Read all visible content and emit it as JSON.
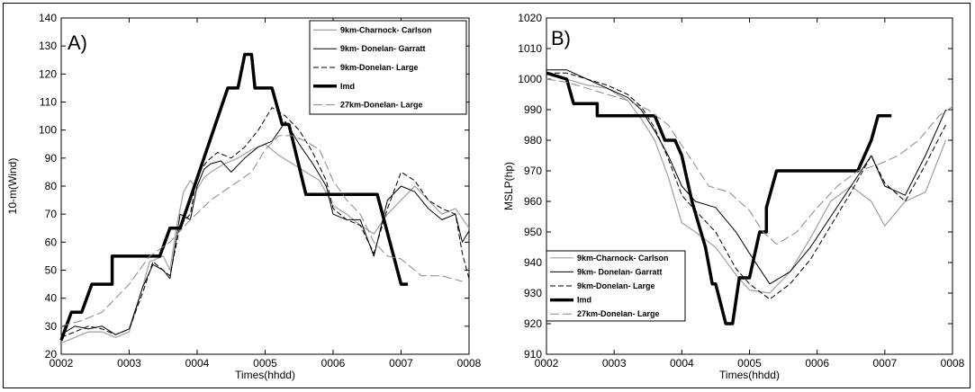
{
  "chart_data": [
    {
      "type": "line",
      "panel_label": "A)",
      "xlabel": "Times(hhdd)",
      "ylabel": "10-m(Wind)",
      "x_ticks": [
        "0002",
        "0003",
        "0004",
        "0005",
        "0006",
        "0007",
        "0008"
      ],
      "xlim": [
        0,
        6
      ],
      "ylim": [
        20,
        140
      ],
      "y_ticks": [
        20,
        30,
        40,
        50,
        60,
        70,
        80,
        90,
        100,
        110,
        120,
        130,
        140
      ],
      "legend_position": "top-right",
      "series": [
        {
          "name": "9km-Charnock- Carlson",
          "color": "#a0a0a0",
          "style": "solid",
          "width": 1.2,
          "x": [
            0,
            0.2,
            0.4,
            0.6,
            0.8,
            1.0,
            1.15,
            1.3,
            1.5,
            1.6,
            1.7,
            1.8,
            1.9,
            2.0,
            2.1,
            2.2,
            2.4,
            2.6,
            2.8,
            3.0,
            3.2,
            3.4,
            3.6,
            3.8,
            4.0,
            4.2,
            4.4,
            4.6,
            4.8,
            5.0,
            5.2,
            5.4,
            5.6,
            5.8,
            6.0
          ],
          "y": [
            24,
            26,
            28,
            28,
            26,
            28,
            40,
            53,
            55,
            50,
            66,
            78,
            82,
            79,
            83,
            85,
            88,
            90,
            93,
            95,
            91,
            88,
            85,
            82,
            73,
            70,
            66,
            63,
            70,
            75,
            80,
            75,
            70,
            72,
            65
          ]
        },
        {
          "name": "9km- Donelan- Garratt",
          "color": "#000000",
          "style": "solid",
          "width": 1.0,
          "x": [
            0,
            0.2,
            0.4,
            0.6,
            0.8,
            1.0,
            1.2,
            1.35,
            1.5,
            1.6,
            1.75,
            1.9,
            2.0,
            2.1,
            2.2,
            2.35,
            2.5,
            2.7,
            2.9,
            3.1,
            3.3,
            3.5,
            3.7,
            3.9,
            4.0,
            4.2,
            4.4,
            4.6,
            4.8,
            5.0,
            5.2,
            5.4,
            5.6,
            5.8,
            5.9,
            6.0
          ],
          "y": [
            27,
            30,
            29,
            30,
            27,
            29,
            44,
            52,
            50,
            47,
            70,
            68,
            80,
            86,
            88,
            89,
            85,
            90,
            94,
            96,
            103,
            95,
            88,
            80,
            70,
            68,
            68,
            55,
            75,
            80,
            78,
            72,
            68,
            70,
            60,
            64
          ]
        },
        {
          "name": "9km-Donelan- Large",
          "color": "#000000",
          "style": "dash",
          "width": 1.0,
          "x": [
            0,
            0.2,
            0.4,
            0.6,
            0.8,
            1.0,
            1.2,
            1.35,
            1.5,
            1.6,
            1.75,
            1.9,
            2.0,
            2.15,
            2.3,
            2.5,
            2.7,
            2.9,
            3.1,
            3.3,
            3.5,
            3.7,
            3.9,
            4.0,
            4.2,
            4.4,
            4.6,
            4.8,
            5.0,
            5.2,
            5.4,
            5.6,
            5.8,
            5.9,
            6.0
          ],
          "y": [
            26,
            28,
            30,
            29,
            27,
            29,
            42,
            53,
            50,
            48,
            66,
            70,
            84,
            89,
            92,
            90,
            94,
            100,
            108,
            105,
            100,
            92,
            82,
            72,
            68,
            66,
            56,
            72,
            85,
            82,
            75,
            72,
            70,
            56,
            47
          ]
        },
        {
          "name": "Imd",
          "color": "#000000",
          "style": "solid",
          "width": 3.5,
          "x": [
            0,
            0.15,
            0.3,
            0.3,
            0.45,
            0.45,
            0.75,
            0.75,
            1.25,
            1.25,
            1.45,
            1.6,
            1.6,
            1.75,
            1.75,
            2.45,
            2.45,
            2.6,
            2.6,
            2.7,
            2.75,
            2.8,
            2.85,
            3.1,
            3.1,
            3.25,
            3.25,
            3.35,
            3.35,
            3.6,
            3.6,
            4.65,
            4.65,
            5.0,
            5.1
          ],
          "y": [
            25,
            35,
            35,
            35,
            45,
            45,
            45,
            55,
            55,
            55,
            55,
            65,
            65,
            65,
            65,
            115,
            115,
            115,
            115,
            127,
            127,
            127,
            115,
            115,
            115,
            102,
            102,
            102,
            102,
            77,
            77,
            77,
            77,
            45,
            45
          ]
        },
        {
          "name": "27km-Donelan- Large",
          "color": "#888888",
          "style": "longdash",
          "width": 1.0,
          "x": [
            0,
            0.3,
            0.6,
            0.8,
            1.0,
            1.3,
            1.6,
            1.9,
            2.2,
            2.5,
            2.8,
            3.0,
            3.2,
            3.4,
            3.6,
            3.8,
            4.0,
            4.2,
            4.4,
            4.6,
            4.8,
            5.0,
            5.3,
            5.6,
            5.9
          ],
          "y": [
            30,
            32,
            35,
            40,
            45,
            55,
            60,
            68,
            75,
            80,
            85,
            93,
            98,
            98,
            96,
            93,
            82,
            75,
            70,
            60,
            55,
            54,
            48,
            48,
            46
          ]
        }
      ]
    },
    {
      "type": "line",
      "panel_label": "B)",
      "xlabel": "Times(hhdd)",
      "ylabel": "MSLP(hp)",
      "x_ticks": [
        "0002",
        "0003",
        "0004",
        "0005",
        "0006",
        "0007",
        "0008"
      ],
      "xlim": [
        0,
        6
      ],
      "ylim": [
        910,
        1020
      ],
      "y_ticks": [
        910,
        920,
        930,
        940,
        950,
        960,
        970,
        980,
        990,
        1000,
        1010,
        1020
      ],
      "legend_position": "bottom-left",
      "series": [
        {
          "name": "9km-Charnock- Carlson",
          "color": "#a0a0a0",
          "style": "solid",
          "width": 1.2,
          "x": [
            0,
            0.3,
            0.6,
            0.9,
            1.2,
            1.4,
            1.6,
            1.8,
            2.0,
            2.2,
            2.5,
            2.8,
            3.0,
            3.3,
            3.6,
            3.9,
            4.2,
            4.5,
            4.8,
            5.0,
            5.3,
            5.6,
            5.9
          ],
          "y": [
            1002,
            1000,
            998,
            997,
            993,
            987,
            980,
            968,
            953,
            950,
            945,
            936,
            931,
            930,
            937,
            948,
            960,
            965,
            960,
            952,
            960,
            963,
            980
          ]
        },
        {
          "name": "9km- Donelan- Garratt",
          "color": "#000000",
          "style": "solid",
          "width": 1.0,
          "x": [
            0,
            0.3,
            0.6,
            0.9,
            1.2,
            1.4,
            1.6,
            1.8,
            2.0,
            2.2,
            2.5,
            2.8,
            3.0,
            3.3,
            3.6,
            3.9,
            4.2,
            4.5,
            4.8,
            5.0,
            5.3,
            5.6,
            5.9
          ],
          "y": [
            1003,
            1003,
            1000,
            997,
            994,
            990,
            983,
            975,
            965,
            960,
            958,
            950,
            943,
            933,
            937,
            945,
            955,
            965,
            975,
            965,
            962,
            975,
            990
          ]
        },
        {
          "name": "9km-Donelan- Large",
          "color": "#000000",
          "style": "dash",
          "width": 1.0,
          "x": [
            0,
            0.3,
            0.6,
            0.9,
            1.2,
            1.4,
            1.6,
            1.8,
            2.0,
            2.2,
            2.5,
            2.8,
            3.0,
            3.3,
            3.6,
            3.9,
            4.2,
            4.5,
            4.8,
            5.0,
            5.3,
            5.6,
            5.9
          ],
          "y": [
            1002,
            1002,
            1000,
            998,
            995,
            991,
            984,
            974,
            962,
            957,
            950,
            938,
            933,
            928,
            933,
            941,
            952,
            963,
            975,
            966,
            960,
            972,
            985
          ]
        },
        {
          "name": "Imd",
          "color": "#000000",
          "style": "solid",
          "width": 3.5,
          "x": [
            0,
            0.3,
            0.4,
            0.75,
            0.75,
            1.2,
            1.5,
            1.6,
            1.75,
            1.9,
            2.0,
            2.15,
            2.35,
            2.45,
            2.5,
            2.65,
            2.75,
            2.85,
            3.0,
            3.15,
            3.15,
            3.25,
            3.25,
            3.4,
            3.6,
            4.6,
            4.8,
            4.9,
            5.1
          ],
          "y": [
            1002,
            1000,
            992,
            992,
            988,
            988,
            988,
            988,
            980,
            980,
            975,
            960,
            945,
            933,
            933,
            920,
            920,
            935,
            935,
            950,
            950,
            950,
            958,
            970,
            970,
            970,
            980,
            988,
            988
          ]
        },
        {
          "name": "27km-Donelan- Large",
          "color": "#888888",
          "style": "longdash",
          "width": 1.0,
          "x": [
            0,
            0.3,
            0.6,
            0.9,
            1.2,
            1.5,
            1.8,
            2.1,
            2.4,
            2.7,
            3.0,
            3.2,
            3.4,
            3.7,
            4.0,
            4.3,
            4.6,
            4.9,
            5.2,
            5.5,
            5.8,
            6.0
          ],
          "y": [
            1000,
            999,
            997,
            995,
            993,
            990,
            985,
            975,
            965,
            963,
            957,
            950,
            946,
            950,
            958,
            965,
            970,
            972,
            975,
            980,
            988,
            991
          ]
        }
      ]
    }
  ]
}
